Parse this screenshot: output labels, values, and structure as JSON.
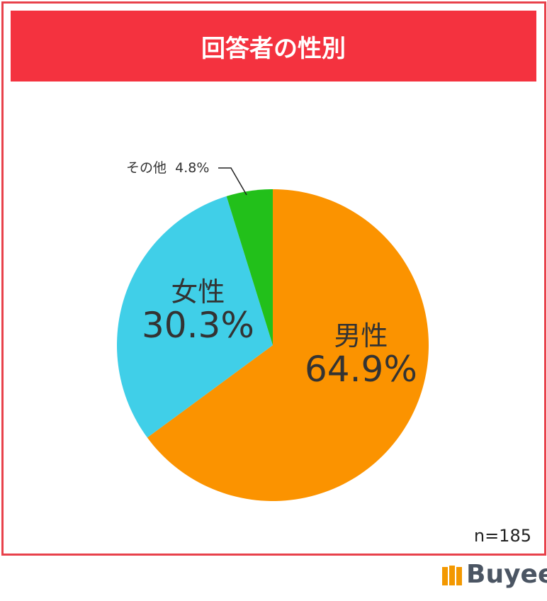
{
  "header": {
    "title": "回答者の性別"
  },
  "chart_data": {
    "type": "pie",
    "title": "回答者の性別",
    "categories": [
      "男性",
      "女性",
      "その他"
    ],
    "values": [
      64.9,
      30.3,
      4.8
    ],
    "value_labels": [
      "64.9%",
      "30.3%",
      "4.8%"
    ],
    "colors": [
      "#fb9300",
      "#40cfe8",
      "#22c01a"
    ],
    "start": "top",
    "direction": "clockwise",
    "note": "n=185"
  },
  "brand": {
    "name": "Buyee",
    "color": "#f39800"
  }
}
